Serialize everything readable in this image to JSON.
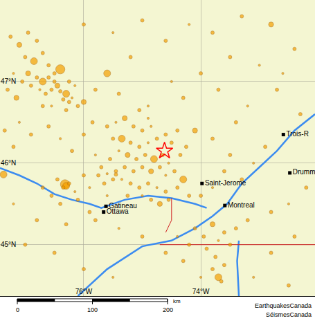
{
  "chart_data": {
    "type": "map",
    "xlim": [
      -77.43,
      -72.05
    ],
    "ylim": [
      44.37,
      48.0
    ],
    "xticks": [
      {
        "value": -76,
        "label": "76°W"
      },
      {
        "value": -74,
        "label": "74°W"
      }
    ],
    "yticks": [
      {
        "value": 45,
        "label": "45°N"
      },
      {
        "value": 46,
        "label": "46°N"
      },
      {
        "value": 47,
        "label": "47°N"
      }
    ],
    "grid": true,
    "earthquakes": {
      "color": "#f5a000",
      "marker": "circle",
      "points": [
        [
          -77.25,
          47.55,
          2
        ],
        [
          -77.1,
          47.45,
          2.5
        ],
        [
          -76.95,
          47.6,
          2
        ],
        [
          -76.8,
          47.5,
          2
        ],
        [
          -77.0,
          47.3,
          2
        ],
        [
          -76.85,
          47.25,
          3
        ],
        [
          -76.7,
          47.35,
          2
        ],
        [
          -76.6,
          47.2,
          2
        ],
        [
          -76.95,
          47.1,
          2.5
        ],
        [
          -76.8,
          47.05,
          2
        ],
        [
          -76.7,
          47.0,
          3
        ],
        [
          -76.6,
          47.05,
          2
        ],
        [
          -76.5,
          47.0,
          2
        ],
        [
          -76.45,
          46.95,
          2.5
        ],
        [
          -76.55,
          46.9,
          2
        ],
        [
          -76.4,
          46.88,
          2
        ],
        [
          -76.3,
          46.85,
          3
        ],
        [
          -76.35,
          46.78,
          2
        ],
        [
          -76.25,
          46.75,
          2
        ],
        [
          -76.2,
          46.8,
          1.5
        ],
        [
          -76.65,
          46.85,
          2
        ],
        [
          -76.75,
          46.9,
          1.5
        ],
        [
          -76.9,
          46.95,
          2
        ],
        [
          -77.05,
          47.0,
          2
        ],
        [
          -77.2,
          47.1,
          1.5
        ],
        [
          -77.3,
          46.9,
          2
        ],
        [
          -77.15,
          46.8,
          2.5
        ],
        [
          -76.5,
          47.1,
          2
        ],
        [
          -76.4,
          47.15,
          3.5
        ],
        [
          -76.25,
          47.0,
          2
        ],
        [
          -76.15,
          46.95,
          1.5
        ],
        [
          -76.1,
          46.7,
          2
        ],
        [
          -76.0,
          46.75,
          2.5
        ],
        [
          -76.3,
          46.65,
          2
        ],
        [
          -76.55,
          46.7,
          1.5
        ],
        [
          -76.7,
          46.7,
          2
        ],
        [
          -76.0,
          47.7,
          2
        ],
        [
          -75.5,
          47.6,
          1.5
        ],
        [
          -75.0,
          47.75,
          2
        ],
        [
          -74.6,
          47.5,
          2
        ],
        [
          -74.2,
          47.7,
          1.5
        ],
        [
          -73.8,
          47.6,
          2
        ],
        [
          -73.3,
          47.8,
          2
        ],
        [
          -72.8,
          47.7,
          2.5
        ],
        [
          -72.4,
          47.4,
          2
        ],
        [
          -73.0,
          47.2,
          1.5
        ],
        [
          -73.5,
          47.3,
          2
        ],
        [
          -74.0,
          47.1,
          2
        ],
        [
          -74.5,
          47.0,
          1.5
        ],
        [
          -75.2,
          47.3,
          2
        ],
        [
          -75.6,
          47.1,
          3
        ],
        [
          -75.8,
          46.9,
          2
        ],
        [
          -75.4,
          46.85,
          2
        ],
        [
          -74.9,
          46.7,
          1.5
        ],
        [
          -74.3,
          46.8,
          2
        ],
        [
          -73.7,
          46.9,
          2
        ],
        [
          -73.2,
          46.7,
          1.5
        ],
        [
          -72.7,
          46.9,
          2
        ],
        [
          -72.3,
          46.6,
          2
        ],
        [
          -72.6,
          47.1,
          1.5
        ],
        [
          -77.35,
          46.4,
          2
        ],
        [
          -77.2,
          46.2,
          2
        ],
        [
          -77.37,
          45.86,
          3
        ],
        [
          -77.1,
          46.5,
          1.5
        ],
        [
          -76.9,
          46.35,
          2
        ],
        [
          -76.6,
          46.45,
          2
        ],
        [
          -76.4,
          46.3,
          1.5
        ],
        [
          -76.2,
          46.15,
          2
        ],
        [
          -76.0,
          46.35,
          2
        ],
        [
          -75.85,
          46.5,
          2
        ],
        [
          -75.6,
          46.45,
          2
        ],
        [
          -75.45,
          46.5,
          1.5
        ],
        [
          -75.3,
          46.55,
          2.5
        ],
        [
          -75.15,
          46.45,
          2
        ],
        [
          -75.0,
          46.4,
          2
        ],
        [
          -74.85,
          46.45,
          1.5
        ],
        [
          -75.5,
          46.3,
          2
        ],
        [
          -75.35,
          46.3,
          3
        ],
        [
          -75.2,
          46.25,
          2
        ],
        [
          -75.05,
          46.2,
          2
        ],
        [
          -74.9,
          46.25,
          1.5
        ],
        [
          -74.75,
          46.3,
          2
        ],
        [
          -74.6,
          46.35,
          2
        ],
        [
          -74.5,
          46.25,
          2
        ],
        [
          -75.4,
          46.15,
          1.5
        ],
        [
          -75.25,
          46.1,
          2.5
        ],
        [
          -75.1,
          46.05,
          2
        ],
        [
          -74.95,
          46.1,
          2
        ],
        [
          -74.8,
          46.05,
          3
        ],
        [
          -74.65,
          46.1,
          2
        ],
        [
          -74.55,
          46.0,
          1.5
        ],
        [
          -75.3,
          45.95,
          2
        ],
        [
          -75.15,
          45.9,
          2
        ],
        [
          -75.0,
          45.95,
          2
        ],
        [
          -74.85,
          45.9,
          2.5
        ],
        [
          -74.7,
          45.95,
          2
        ],
        [
          -74.6,
          45.85,
          1.5
        ],
        [
          -74.45,
          45.9,
          2
        ],
        [
          -75.45,
          45.9,
          2
        ],
        [
          -75.5,
          45.8,
          2
        ],
        [
          -75.35,
          45.8,
          1.5
        ],
        [
          -75.2,
          45.75,
          2
        ],
        [
          -75.05,
          45.7,
          2
        ],
        [
          -74.9,
          45.75,
          2
        ],
        [
          -74.75,
          45.7,
          1.5
        ],
        [
          -74.6,
          45.65,
          2
        ],
        [
          -74.4,
          45.7,
          2
        ],
        [
          -74.3,
          45.8,
          3
        ],
        [
          -74.2,
          45.6,
          2
        ],
        [
          -75.0,
          45.6,
          1.5
        ],
        [
          -74.85,
          45.55,
          2
        ],
        [
          -74.7,
          45.5,
          2.5
        ],
        [
          -74.55,
          45.55,
          2
        ],
        [
          -75.25,
          45.6,
          2
        ],
        [
          -75.6,
          45.6,
          1.5
        ],
        [
          -75.65,
          45.75,
          2
        ],
        [
          -75.7,
          45.95,
          2
        ],
        [
          -75.55,
          46.05,
          2
        ],
        [
          -75.8,
          46.1,
          1.5
        ],
        [
          -74.35,
          46.1,
          2
        ],
        [
          -74.25,
          46.2,
          2
        ],
        [
          -74.4,
          46.4,
          2
        ],
        [
          -74.9,
          46.55,
          1.5
        ],
        [
          -75.05,
          46.65,
          2
        ],
        [
          -76.32,
          45.74,
          3.5
        ],
        [
          -76.3,
          45.72,
          3
        ],
        [
          -76.35,
          45.7,
          2
        ],
        [
          -76.25,
          45.75,
          2
        ],
        [
          -76.45,
          45.8,
          2
        ],
        [
          -76.15,
          45.65,
          1.5
        ],
        [
          -76.55,
          45.6,
          2
        ],
        [
          -76.7,
          45.7,
          2
        ],
        [
          -76.0,
          45.85,
          2
        ],
        [
          -75.9,
          45.7,
          1.5
        ],
        [
          -76.1,
          45.55,
          2
        ],
        [
          -76.4,
          45.5,
          2
        ],
        [
          -75.9,
          45.4,
          2
        ],
        [
          -75.75,
          45.85,
          2
        ],
        [
          -75.6,
          45.87,
          1.5
        ],
        [
          -75.45,
          45.86,
          2
        ],
        [
          -74.0,
          45.6,
          2
        ],
        [
          -73.8,
          45.7,
          1.5
        ],
        [
          -73.6,
          45.9,
          2
        ],
        [
          -73.3,
          45.8,
          2
        ],
        [
          -73.1,
          46.0,
          1.5
        ],
        [
          -72.9,
          46.2,
          2
        ],
        [
          -73.5,
          46.1,
          2
        ],
        [
          -73.8,
          46.3,
          2
        ],
        [
          -74.1,
          46.4,
          2.5
        ],
        [
          -73.4,
          46.5,
          2
        ],
        [
          -72.2,
          45.7,
          2
        ],
        [
          -72.5,
          45.5,
          1.5
        ],
        [
          -72.8,
          45.4,
          2
        ],
        [
          -73.2,
          45.3,
          2
        ],
        [
          -73.4,
          45.2,
          2
        ],
        [
          -73.6,
          45.15,
          2
        ],
        [
          -73.8,
          45.25,
          2.5
        ],
        [
          -73.95,
          45.1,
          2
        ],
        [
          -74.1,
          45.2,
          2
        ],
        [
          -73.7,
          45.05,
          1.5
        ],
        [
          -73.5,
          45.0,
          2
        ],
        [
          -73.9,
          44.95,
          2
        ],
        [
          -74.2,
          45.0,
          2
        ],
        [
          -74.4,
          45.1,
          1.5
        ],
        [
          -73.75,
          44.85,
          2
        ],
        [
          -73.6,
          44.75,
          2
        ],
        [
          -73.8,
          44.7,
          2
        ],
        [
          -73.7,
          44.6,
          3
        ],
        [
          -73.65,
          44.55,
          2
        ],
        [
          -74.0,
          44.6,
          1.5
        ],
        [
          -74.3,
          44.8,
          2
        ],
        [
          -74.6,
          44.9,
          2
        ],
        [
          -75.0,
          45.1,
          2
        ],
        [
          -75.4,
          45.2,
          1.5
        ],
        [
          -75.8,
          45.3,
          2
        ],
        [
          -76.3,
          45.25,
          2
        ],
        [
          -76.8,
          45.3,
          2
        ],
        [
          -77.2,
          45.5,
          1.5
        ],
        [
          -77.0,
          45.0,
          2
        ],
        [
          -76.5,
          44.9,
          2
        ],
        [
          -76.0,
          44.7,
          2
        ],
        [
          -75.5,
          44.6,
          1.5
        ],
        [
          -72.8,
          44.9,
          2
        ],
        [
          -72.4,
          45.1,
          2
        ],
        [
          -73.1,
          44.6,
          1.5
        ],
        [
          -72.5,
          44.5,
          2
        ]
      ]
    },
    "epicenter": {
      "x": -74.62,
      "y": 46.15,
      "color": "#ff0000",
      "marker": "star-open"
    },
    "places": {
      "color": "#000000",
      "marker": "square",
      "items": [
        {
          "label": "Gatineau",
          "x": -75.62,
          "y": 45.47
        },
        {
          "label": "Ottawa",
          "x": -75.66,
          "y": 45.4
        },
        {
          "label": "Saint-Jerome",
          "x": -73.98,
          "y": 45.75
        },
        {
          "label": "Montreal",
          "x": -73.59,
          "y": 45.48
        },
        {
          "label": "Trois-R",
          "x": -72.59,
          "y": 46.35
        },
        {
          "label": "Drumm",
          "x": -72.48,
          "y": 45.88
        }
      ]
    },
    "water": {
      "color": "#3c8cf0",
      "lines": [
        [
          [
            -77.43,
            45.94
          ],
          [
            -77.1,
            45.85
          ],
          [
            -76.8,
            45.75
          ],
          [
            -76.5,
            45.62
          ],
          [
            -76.2,
            45.55
          ],
          [
            -75.9,
            45.5
          ],
          [
            -75.7,
            45.45
          ],
          [
            -75.3,
            45.55
          ],
          [
            -74.9,
            45.6
          ],
          [
            -74.5,
            45.57
          ],
          [
            -74.1,
            45.5
          ],
          [
            -73.9,
            45.45
          ]
        ],
        [
          [
            -76.1,
            44.37
          ],
          [
            -75.6,
            44.7
          ],
          [
            -75.0,
            44.98
          ],
          [
            -74.5,
            45.05
          ],
          [
            -74.1,
            45.2
          ],
          [
            -73.8,
            45.35
          ],
          [
            -73.55,
            45.5
          ],
          [
            -73.3,
            45.75
          ],
          [
            -73.0,
            45.95
          ],
          [
            -72.7,
            46.15
          ],
          [
            -72.4,
            46.4
          ],
          [
            -72.05,
            46.6
          ]
        ],
        [
          [
            -73.35,
            45.05
          ],
          [
            -73.38,
            44.8
          ],
          [
            -73.35,
            44.37
          ]
        ]
      ]
    },
    "borders": {
      "color": "#d02020",
      "lines": [
        [
          [
            -74.5,
            45.57
          ],
          [
            -74.5,
            45.3
          ],
          [
            -74.6,
            45.15
          ]
        ],
        [
          [
            -74.7,
            45.0
          ],
          [
            -72.05,
            45.0
          ]
        ]
      ]
    },
    "scale_bar": {
      "ticks": [
        0,
        100,
        200
      ],
      "unit": "km"
    },
    "credits": [
      "EarthquakesCanada",
      "SéismesCanada"
    ]
  }
}
